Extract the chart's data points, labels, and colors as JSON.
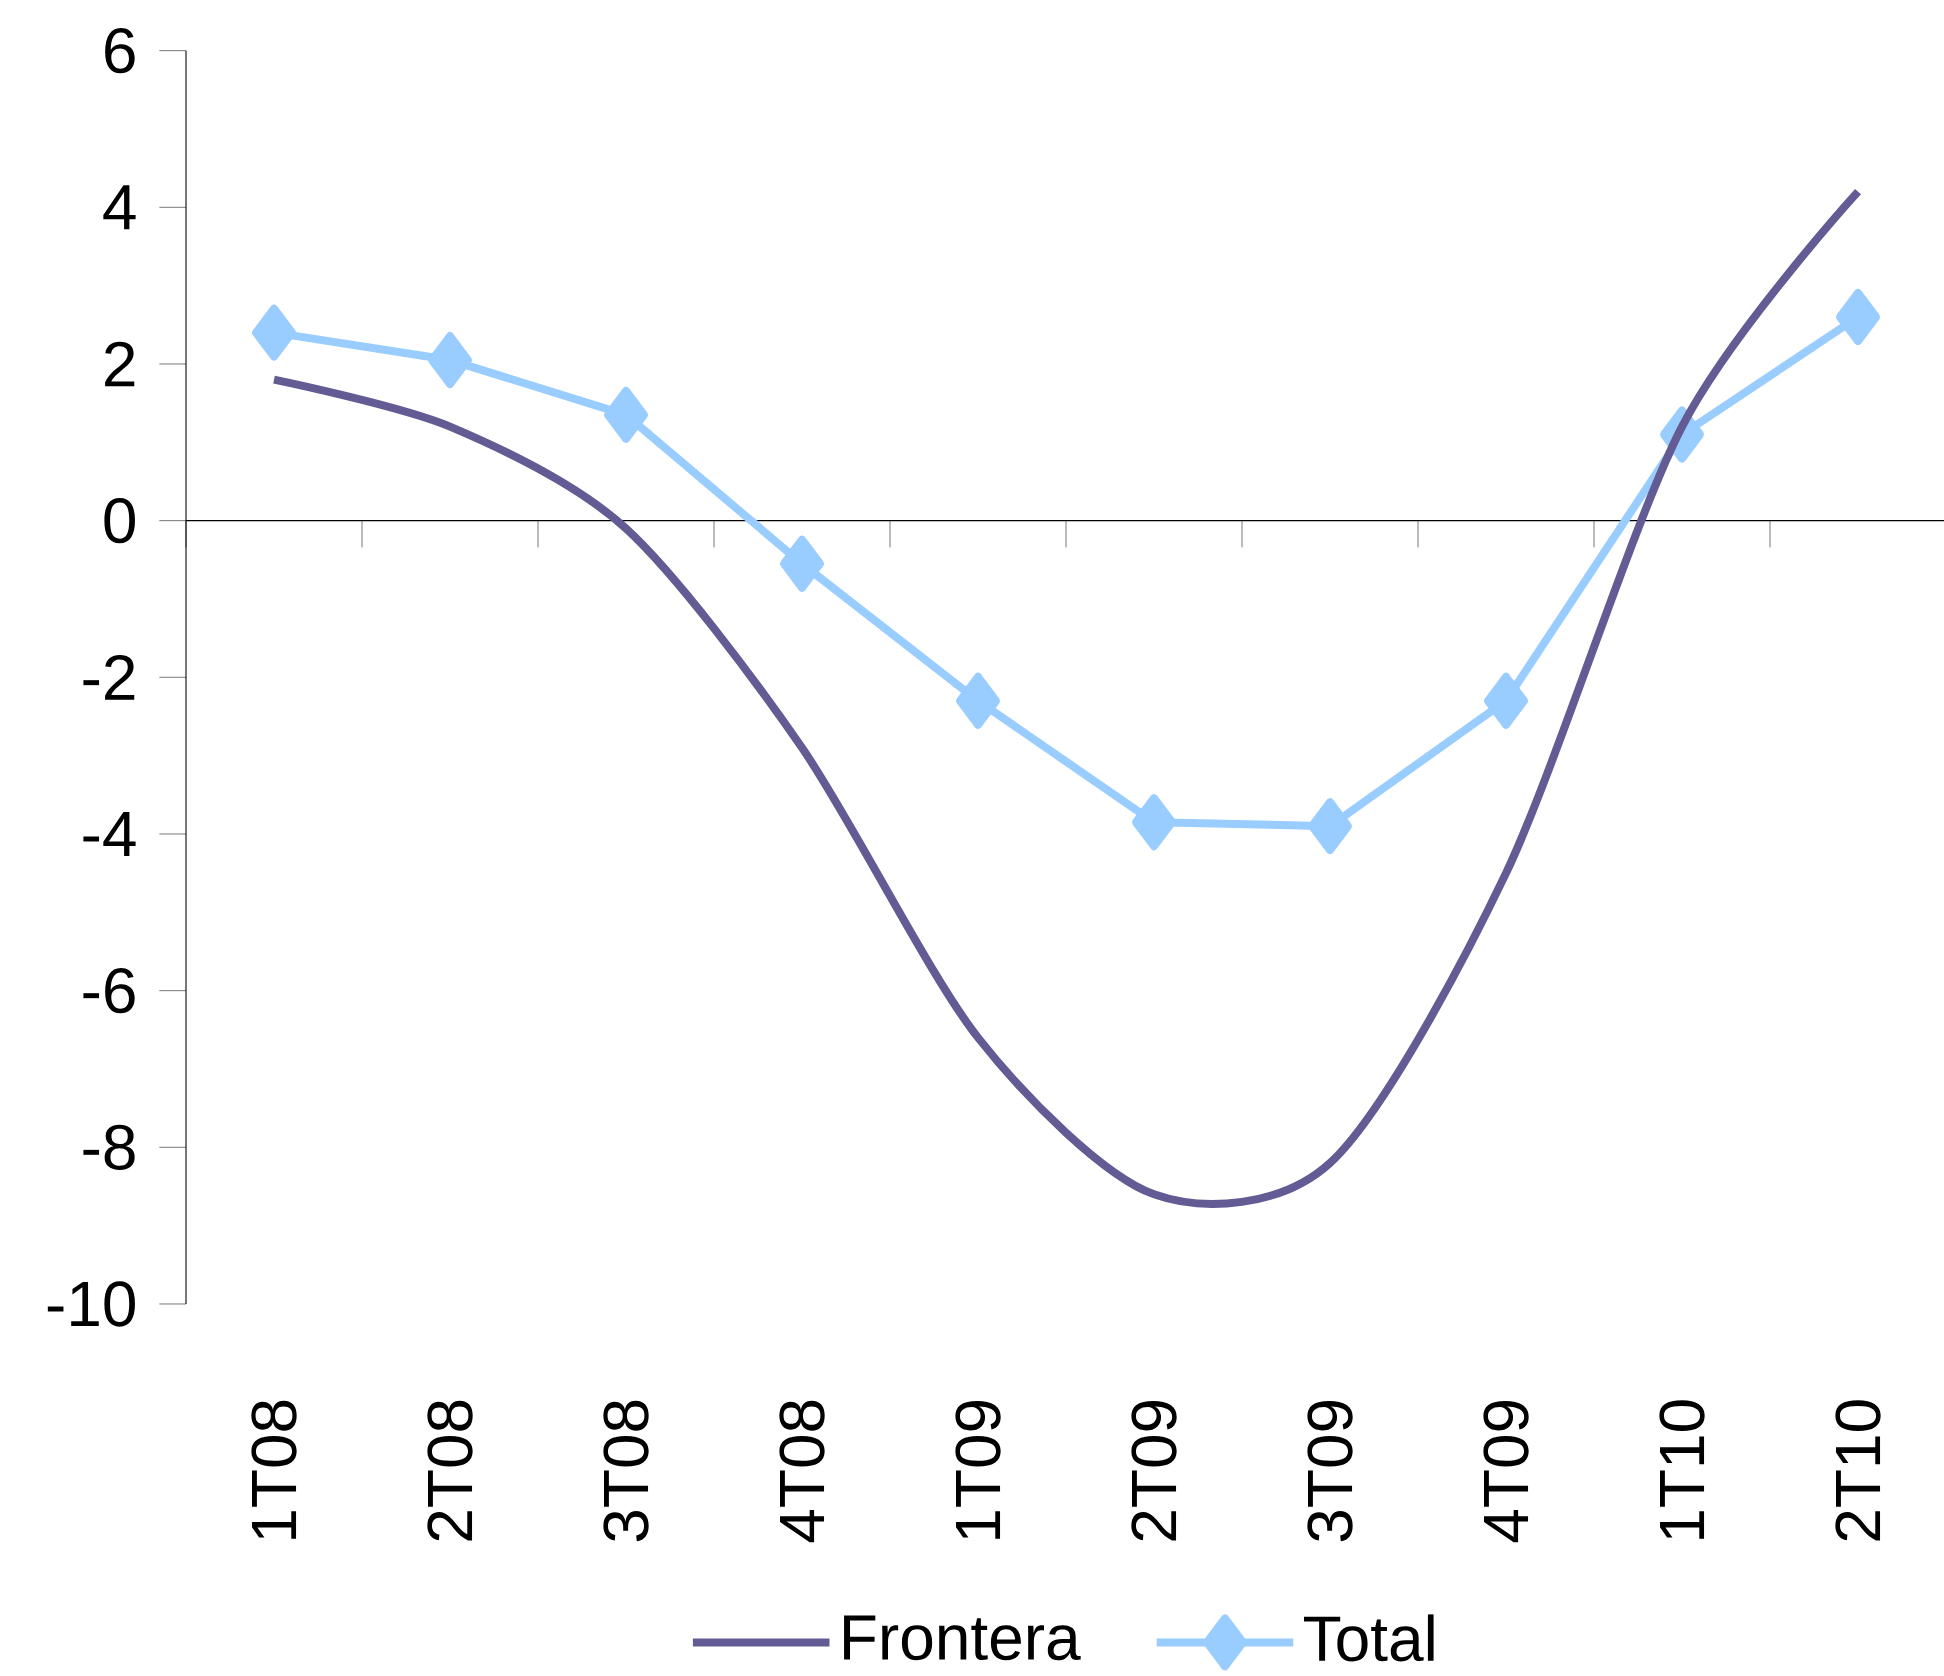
{
  "chart_data": {
    "type": "line",
    "categories": [
      "1T08",
      "2T08",
      "3T08",
      "4T08",
      "1T09",
      "2T09",
      "3T09",
      "4T09",
      "1T10",
      "2T10"
    ],
    "series": [
      {
        "name": "Frontera",
        "color": "#625b94",
        "marker": "none",
        "values": [
          1.8,
          1.2,
          -0.1,
          -2.9,
          -6.6,
          -8.6,
          -8.2,
          -4.5,
          1.2,
          4.2
        ]
      },
      {
        "name": "Total",
        "color": "#99ccff",
        "marker": "diamond",
        "values": [
          2.4,
          2.05,
          1.35,
          -0.55,
          -2.3,
          -3.85,
          -3.9,
          -2.3,
          1.1,
          2.6
        ]
      }
    ],
    "ylim": [
      -10,
      6
    ],
    "yticks": [
      -10,
      -8,
      -6,
      -4,
      -2,
      0,
      2,
      4,
      6
    ],
    "legend": "bottom"
  }
}
